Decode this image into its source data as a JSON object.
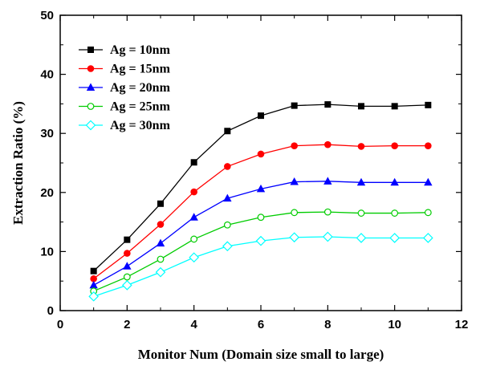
{
  "chart_data": {
    "type": "line",
    "title": "",
    "xlabel": "Monitor Num (Domain size small to large)",
    "ylabel": "Extraction Ratio (%)",
    "xlim": [
      0,
      12
    ],
    "ylim": [
      0,
      50
    ],
    "xticks": [
      "0",
      "2",
      "4",
      "6",
      "8",
      "10",
      "12"
    ],
    "yticks": [
      "0",
      "10",
      "20",
      "30",
      "40",
      "50"
    ],
    "grid": false,
    "legend_position": "top-left",
    "x": [
      1,
      2,
      3,
      4,
      5,
      6,
      7,
      8,
      9,
      10,
      11
    ],
    "series": [
      {
        "name": "Ag = 10nm",
        "color": "#000000",
        "marker": "filled-square",
        "values": [
          6.7,
          12.0,
          18.1,
          25.1,
          30.4,
          33.0,
          34.7,
          34.9,
          34.6,
          34.6,
          34.8
        ]
      },
      {
        "name": "Ag = 15nm",
        "color": "#ff0000",
        "marker": "filled-circle",
        "values": [
          5.4,
          9.7,
          14.6,
          20.1,
          24.4,
          26.5,
          27.9,
          28.1,
          27.8,
          27.9,
          27.9
        ]
      },
      {
        "name": "Ag = 20nm",
        "color": "#0000ff",
        "marker": "filled-triangle",
        "values": [
          4.3,
          7.5,
          11.4,
          15.8,
          19.0,
          20.6,
          21.8,
          21.9,
          21.7,
          21.7,
          21.7
        ]
      },
      {
        "name": "Ag = 25nm",
        "color": "#00cc00",
        "marker": "open-circle",
        "values": [
          3.3,
          5.7,
          8.7,
          12.1,
          14.5,
          15.8,
          16.6,
          16.7,
          16.5,
          16.5,
          16.6
        ]
      },
      {
        "name": "Ag = 30nm",
        "color": "#00ffff",
        "marker": "open-diamond",
        "values": [
          2.4,
          4.3,
          6.5,
          9.0,
          10.9,
          11.8,
          12.4,
          12.5,
          12.3,
          12.3,
          12.3
        ]
      }
    ]
  }
}
